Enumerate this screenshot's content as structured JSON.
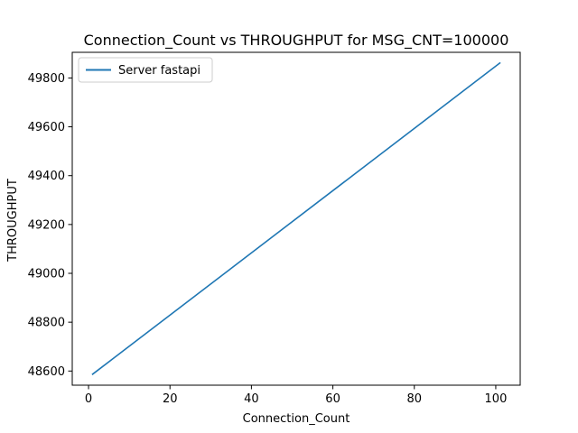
{
  "chart_data": {
    "type": "line",
    "title": "Connection_Count vs THROUGHPUT for MSG_CNT=100000",
    "xlabel": "Connection_Count",
    "ylabel": "THROUGHPUT",
    "xlim": [
      -4,
      106
    ],
    "ylim": [
      48542,
      49905
    ],
    "xticks": [
      0,
      20,
      40,
      60,
      80,
      100
    ],
    "yticks": [
      48600,
      48800,
      49000,
      49200,
      49400,
      49600,
      49800
    ],
    "xtick_labels": [
      "0",
      "20",
      "40",
      "60",
      "80",
      "100"
    ],
    "ytick_labels": [
      "48600",
      "48800",
      "49000",
      "49200",
      "49400",
      "49600",
      "49800"
    ],
    "grid": false,
    "legend_position": "top-left",
    "series": [
      {
        "name": "Server fastapi",
        "color": "#1f77b4",
        "x": [
          1,
          101
        ],
        "y": [
          48587,
          49861
        ]
      }
    ]
  }
}
